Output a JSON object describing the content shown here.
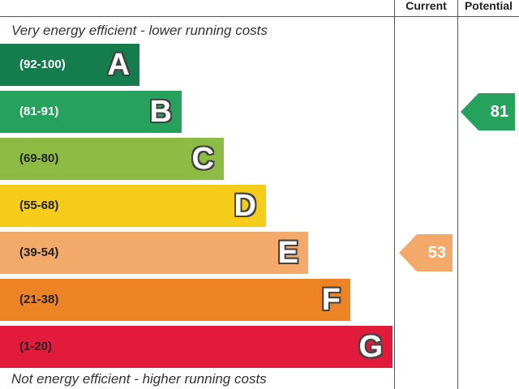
{
  "header": {
    "current_label": "Current",
    "potential_label": "Potential"
  },
  "captions": {
    "top": "Very energy efficient - lower running costs",
    "bottom": "Not energy efficient - higher running costs"
  },
  "chart_data": {
    "type": "bar",
    "bands": [
      {
        "letter": "A",
        "range": "(92-100)",
        "color": "#147c4d",
        "range_color": "#ffffff"
      },
      {
        "letter": "B",
        "range": "(81-91)",
        "color": "#27a25c",
        "range_color": "#ffffff"
      },
      {
        "letter": "C",
        "range": "(69-80)",
        "color": "#8cbc43",
        "range_color": "#222222"
      },
      {
        "letter": "D",
        "range": "(55-68)",
        "color": "#f6cc1b",
        "range_color": "#222222"
      },
      {
        "letter": "E",
        "range": "(39-54)",
        "color": "#f2a969",
        "range_color": "#222222"
      },
      {
        "letter": "F",
        "range": "(21-38)",
        "color": "#ec8325",
        "range_color": "#222222"
      },
      {
        "letter": "G",
        "range": "(1-20)",
        "color": "#e21b3c",
        "range_color": "#222222"
      }
    ],
    "current": {
      "value": 53,
      "band": "E",
      "color": "#f2a969"
    },
    "potential": {
      "value": 81,
      "band": "B",
      "color": "#27a25c"
    }
  }
}
